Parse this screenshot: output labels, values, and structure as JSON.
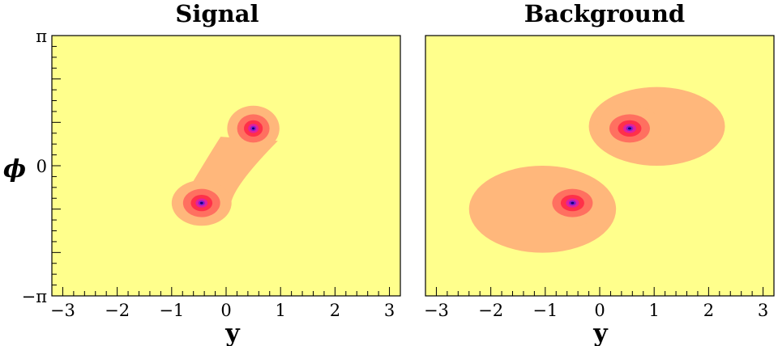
{
  "chart_data": [
    {
      "type": "heatmap",
      "title": "Signal",
      "xlabel": "y",
      "ylabel": "ϕ",
      "xlim": [
        -3.2,
        3.2
      ],
      "ylim": [
        -3.14159,
        3.14159
      ],
      "x_ticks": [
        {
          "value": -3,
          "label": "−3"
        },
        {
          "value": -2,
          "label": "−2"
        },
        {
          "value": -1,
          "label": "−1"
        },
        {
          "value": 0,
          "label": "0"
        },
        {
          "value": 1,
          "label": "1"
        },
        {
          "value": 2,
          "label": "2"
        },
        {
          "value": 3,
          "label": "3"
        }
      ],
      "y_ticks": [
        {
          "value": 3.14159,
          "label": "π"
        },
        {
          "value": 0,
          "label": "0"
        },
        {
          "value": -3.14159,
          "label": "−π"
        }
      ],
      "background_color": "#ffff8c",
      "level_colors": [
        "#ffff8c",
        "#ffb77b",
        "#ff7060",
        "#ff3049",
        "#e020a0",
        "#8020d0",
        "#10007a"
      ],
      "peaks": [
        {
          "x": 0.5,
          "y": 0.9,
          "spread_x": 0.48,
          "spread_y": 0.55
        },
        {
          "x": -0.45,
          "y": -0.9,
          "spread_x": 0.55,
          "spread_y": 0.55
        }
      ],
      "bridge": true
    },
    {
      "type": "heatmap",
      "title": "Background",
      "xlabel": "y",
      "ylabel": "",
      "xlim": [
        -3.2,
        3.2
      ],
      "ylim": [
        -3.14159,
        3.14159
      ],
      "x_ticks": [
        {
          "value": -3,
          "label": "−3"
        },
        {
          "value": -2,
          "label": "−2"
        },
        {
          "value": -1,
          "label": "−1"
        },
        {
          "value": 0,
          "label": "0"
        },
        {
          "value": 1,
          "label": "1"
        },
        {
          "value": 2,
          "label": "2"
        },
        {
          "value": 3,
          "label": "3"
        }
      ],
      "y_ticks": [],
      "background_color": "#ffff8c",
      "level_colors": [
        "#ffff8c",
        "#ffb77b",
        "#ff7060",
        "#ff3049",
        "#e020a0",
        "#8020d0",
        "#10007a"
      ],
      "peaks": [
        {
          "x": 0.55,
          "y": 0.9,
          "spread_x": 0.6,
          "spread_y": 0.55,
          "halo_x": 1.25,
          "halo_y": 0.95,
          "halo_center_x": 1.05
        },
        {
          "x": -0.5,
          "y": -0.9,
          "spread_x": 0.6,
          "spread_y": 0.55,
          "halo_x": 1.35,
          "halo_y": 1.05,
          "halo_center_x": -1.05
        }
      ],
      "bridge": false
    }
  ]
}
